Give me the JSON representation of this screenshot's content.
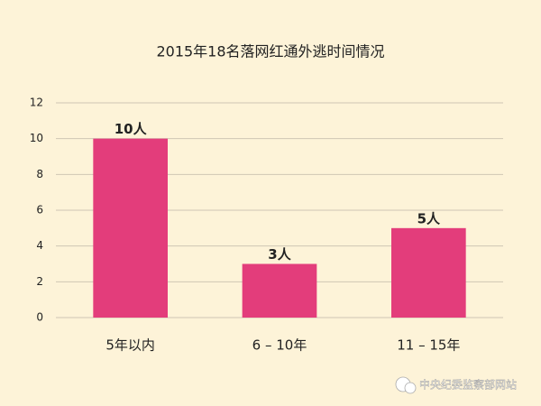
{
  "chart_data": {
    "type": "bar",
    "title": "2015年18名落网红通外逃时间情况",
    "categories": [
      "5年以内",
      "6 – 10年",
      "11 – 15年"
    ],
    "values": [
      10,
      3,
      5
    ],
    "value_labels": [
      "10人",
      "3人",
      "5人"
    ],
    "color": "#e33d7b",
    "ylim": [
      0,
      12
    ],
    "yticks": [
      0,
      2,
      4,
      6,
      8,
      10,
      12
    ],
    "grid": true
  },
  "watermark": "中央纪委监察部网站"
}
